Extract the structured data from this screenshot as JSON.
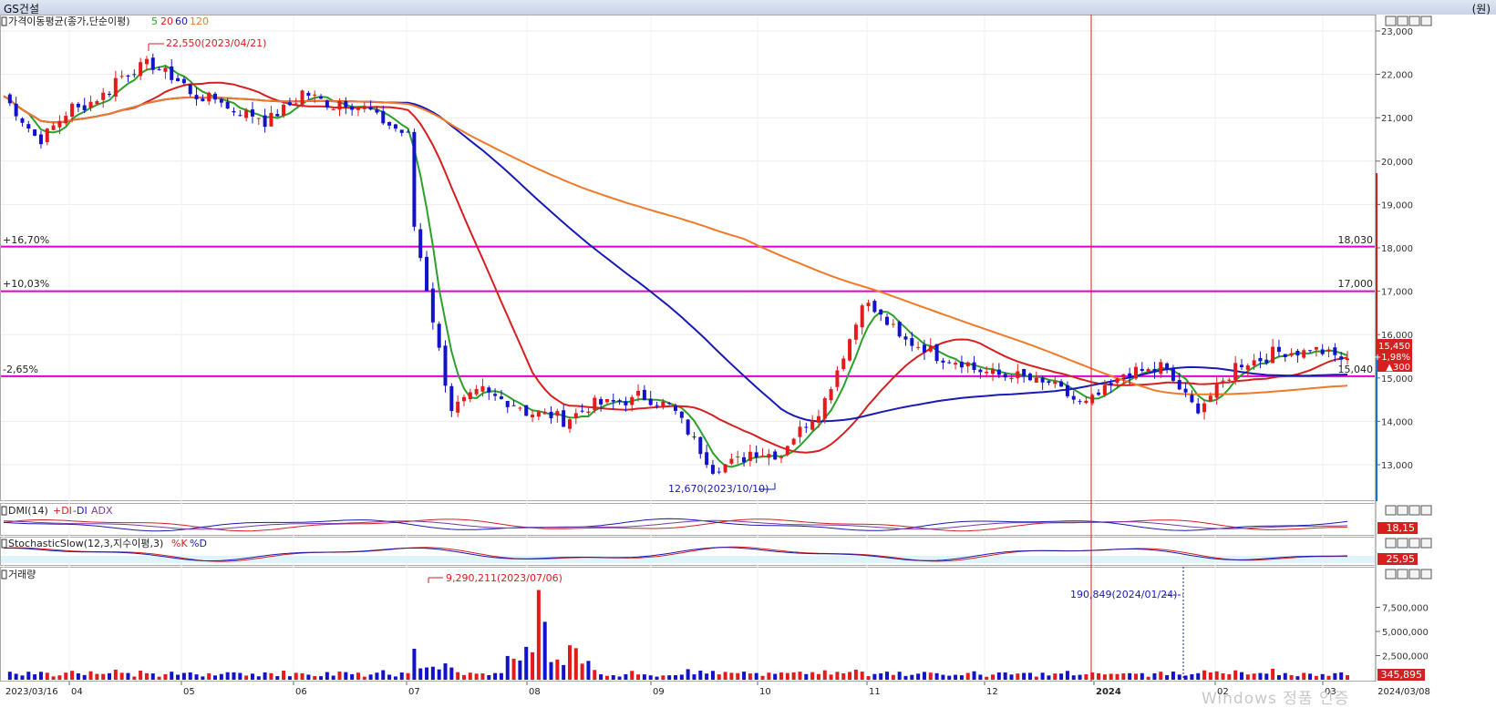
{
  "window": {
    "title": "GS건설",
    "unit": "(원)"
  },
  "watermark": "Windows 정품 인증",
  "panels": {
    "price_label": "가격이동평균(종가,단순이평)",
    "ma_periods": [
      "5",
      "20",
      "60",
      "120"
    ],
    "dmi_label": "DMI(14)",
    "dmi_items": [
      "+DI",
      "-DI",
      "ADX"
    ],
    "stoch_label": "StochasticSlow(12,3,지수이평,3)",
    "stoch_items": [
      "%K",
      "%D"
    ],
    "volume_label": "거래량"
  },
  "colors": {
    "up": "#e41a1c",
    "down": "#1212cc",
    "ma5": "#2ca02c",
    "ma20": "#d62020",
    "ma60": "#1a1ab4",
    "ma120": "#f07a2a",
    "hline": "#e000d0",
    "cursor": "#d81e1e"
  },
  "readouts": {
    "dmi_value": "18,15",
    "stoch_value": "25,95",
    "volume_value": "345,895",
    "price_current": "15,450",
    "price_change": "+1,98%",
    "price_diff": "▲300"
  },
  "chart_data": {
    "type": "candlestick",
    "date_range": [
      "2023/03/16",
      "2024/03/08"
    ],
    "x_ticks": [
      "2023/03/16",
      "04",
      "05",
      "06",
      "07",
      "08",
      "09",
      "10",
      "11",
      "12",
      "2024",
      "02",
      "03",
      "2024/03/08"
    ],
    "y_ticks": [
      "23,000",
      "22,000",
      "21,000",
      "20,000",
      "19,000",
      "18,000",
      "17,000",
      "16,000",
      "15,000",
      "14,000",
      "13,000"
    ],
    "ylim": [
      12400,
      23400
    ],
    "annotations": {
      "high": "22,550(2023/04/21)",
      "low": "12,670(2023/10/10)",
      "volume_max": "9,290,211(2023/07/06)",
      "volume_min": "190,849(2024/01/24)"
    },
    "horizontal_lines": [
      {
        "pct": "+16,70%",
        "value": 18030,
        "label": "18,030"
      },
      {
        "pct": "+10,03%",
        "value": 17000,
        "label": "17,000"
      },
      {
        "pct": "-2,65%",
        "value": 15040,
        "label": "15,040"
      }
    ],
    "anchors": [
      [
        21300,
        21500
      ],
      [
        20400,
        20500
      ],
      [
        21400,
        21200
      ],
      [
        21700,
        21900
      ],
      [
        22300,
        22200
      ],
      [
        21700,
        21500
      ],
      [
        21400,
        21200
      ],
      [
        21000,
        20900
      ],
      [
        21500,
        21600
      ],
      [
        21200,
        21400
      ],
      [
        21100,
        21000
      ],
      [
        20500,
        18500
      ],
      [
        14200,
        14300
      ],
      [
        14800,
        14600
      ],
      [
        14300,
        14200
      ],
      [
        14100,
        14000
      ],
      [
        14500,
        14400
      ],
      [
        14500,
        14600
      ],
      [
        14300,
        14200
      ],
      [
        12900,
        12900
      ],
      [
        13200,
        13300
      ],
      [
        13200,
        13500
      ],
      [
        14400,
        14500
      ],
      [
        16600,
        16800
      ],
      [
        16000,
        15900
      ],
      [
        15600,
        15500
      ],
      [
        15300,
        15200
      ],
      [
        15000,
        15100
      ],
      [
        14800,
        14900
      ],
      [
        14300,
        14400
      ],
      [
        15000,
        15100
      ],
      [
        15200,
        15300
      ],
      [
        14200,
        14300
      ],
      [
        15200,
        15300
      ],
      [
        15500,
        15600
      ],
      [
        15600,
        15700
      ],
      [
        15400,
        15450
      ]
    ],
    "volume_ylim": [
      0,
      10000000
    ],
    "volume_ticks": [
      "7,500,000",
      "5,000,000",
      "2,500,000"
    ],
    "dmi_ylim": [
      0,
      60
    ],
    "stoch_ylim": [
      0,
      100
    ]
  }
}
